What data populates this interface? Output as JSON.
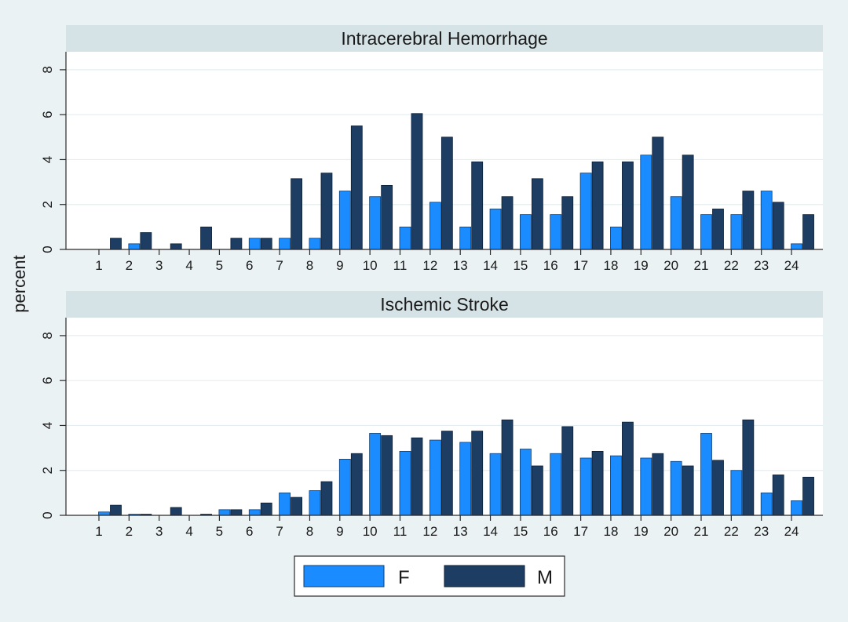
{
  "chart_data": {
    "type": "bar",
    "ylabel": "percent",
    "legend": {
      "placement": "bottom-center",
      "entries": [
        {
          "name": "F",
          "color": "#1a8cff"
        },
        {
          "name": "M",
          "color": "#1d3d63"
        }
      ]
    },
    "grid": true,
    "categories": [
      "1",
      "2",
      "3",
      "4",
      "5",
      "6",
      "7",
      "8",
      "9",
      "10",
      "11",
      "12",
      "13",
      "14",
      "15",
      "16",
      "17",
      "18",
      "19",
      "20",
      "21",
      "22",
      "23",
      "24"
    ],
    "yticks": [
      "0",
      "2",
      "4",
      "6",
      "8"
    ],
    "ylim": [
      0,
      8.8
    ],
    "panels": [
      {
        "title": "Intracerebral Hemorrhage",
        "series": [
          {
            "name": "F",
            "values": [
              0,
              0.25,
              0,
              0,
              0,
              0.5,
              0.5,
              0.5,
              2.6,
              2.35,
              1.0,
              2.1,
              1.0,
              1.8,
              1.55,
              1.55,
              3.4,
              1.0,
              4.2,
              2.35,
              1.55,
              1.55,
              2.6,
              0.25
            ]
          },
          {
            "name": "M",
            "values": [
              0.5,
              0.75,
              0.25,
              1.0,
              0.5,
              0.5,
              3.15,
              3.4,
              5.5,
              2.85,
              6.05,
              5.0,
              3.9,
              2.35,
              3.15,
              2.35,
              3.9,
              3.9,
              5.0,
              4.2,
              1.8,
              2.6,
              2.1,
              1.55
            ]
          }
        ]
      },
      {
        "title": "Ischemic Stroke",
        "series": [
          {
            "name": "F",
            "values": [
              0.15,
              0.05,
              0,
              0,
              0.25,
              0.25,
              1.0,
              1.1,
              2.5,
              3.65,
              2.85,
              3.35,
              3.25,
              2.75,
              2.95,
              2.75,
              2.55,
              2.65,
              2.55,
              2.4,
              3.65,
              2.0,
              1.0,
              0.65
            ]
          },
          {
            "name": "M",
            "values": [
              0.45,
              0.05,
              0.35,
              0.05,
              0.25,
              0.55,
              0.8,
              1.5,
              2.75,
              3.55,
              3.45,
              3.75,
              3.75,
              4.25,
              2.2,
              3.95,
              2.85,
              4.15,
              2.75,
              2.2,
              2.45,
              4.25,
              1.8,
              1.7
            ]
          }
        ]
      }
    ]
  }
}
